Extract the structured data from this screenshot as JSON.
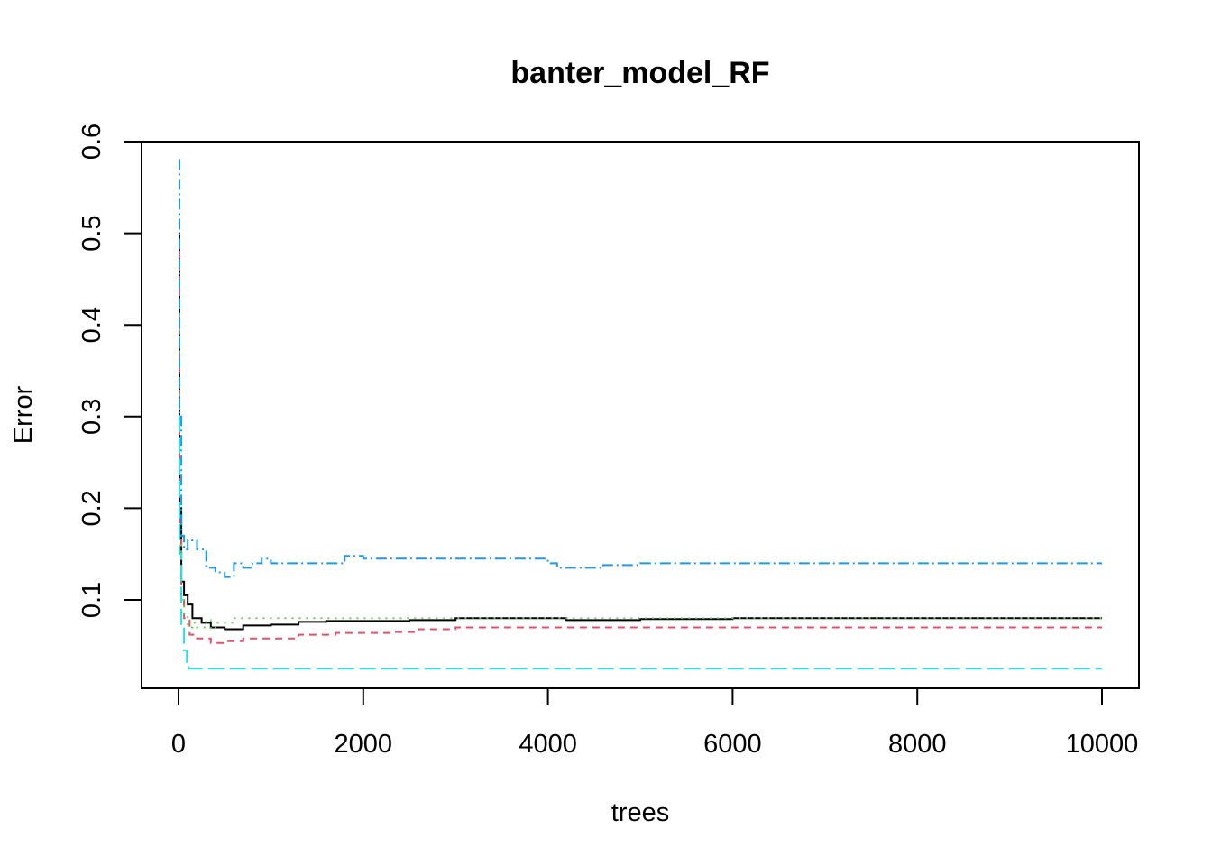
{
  "chart_data": {
    "type": "line",
    "title": "banter_model_RF",
    "xlabel": "trees",
    "ylabel": "Error",
    "xlim": [
      0,
      10000
    ],
    "ylim": [
      0.02,
      0.6
    ],
    "x_ticks": [
      0,
      2000,
      4000,
      6000,
      8000,
      10000
    ],
    "x_tick_labels": [
      "0",
      "2000",
      "4000",
      "6000",
      "8000",
      "10000"
    ],
    "y_ticks": [
      0.1,
      0.2,
      0.3,
      0.4,
      0.5,
      0.6
    ],
    "y_tick_labels": [
      "0.1",
      "0.2",
      "0.3",
      "0.4",
      "0.5",
      "0.6"
    ],
    "grid": false,
    "legend": "none",
    "series": [
      {
        "color": "#000000",
        "dash": "solid",
        "points": [
          [
            1,
            0.5
          ],
          [
            10,
            0.2
          ],
          [
            30,
            0.12
          ],
          [
            60,
            0.105
          ],
          [
            100,
            0.095
          ],
          [
            150,
            0.08
          ],
          [
            250,
            0.075
          ],
          [
            350,
            0.07
          ],
          [
            500,
            0.068
          ],
          [
            700,
            0.072
          ],
          [
            1000,
            0.073
          ],
          [
            1300,
            0.076
          ],
          [
            1600,
            0.077
          ],
          [
            2000,
            0.077
          ],
          [
            2500,
            0.078
          ],
          [
            3000,
            0.08
          ],
          [
            3500,
            0.08
          ],
          [
            4000,
            0.08
          ],
          [
            4200,
            0.078
          ],
          [
            4600,
            0.078
          ],
          [
            5000,
            0.079
          ],
          [
            6000,
            0.08
          ],
          [
            8000,
            0.08
          ],
          [
            10000,
            0.08
          ]
        ]
      },
      {
        "color": "#DF536B",
        "dash": "8,6",
        "points": [
          [
            1,
            0.48
          ],
          [
            10,
            0.17
          ],
          [
            30,
            0.1
          ],
          [
            60,
            0.08
          ],
          [
            120,
            0.062
          ],
          [
            200,
            0.058
          ],
          [
            350,
            0.053
          ],
          [
            500,
            0.055
          ],
          [
            700,
            0.058
          ],
          [
            1000,
            0.058
          ],
          [
            1300,
            0.062
          ],
          [
            1700,
            0.064
          ],
          [
            2000,
            0.064
          ],
          [
            2300,
            0.065
          ],
          [
            2600,
            0.068
          ],
          [
            3000,
            0.07
          ],
          [
            3500,
            0.07
          ],
          [
            4000,
            0.07
          ],
          [
            6000,
            0.07
          ],
          [
            10000,
            0.07
          ]
        ]
      },
      {
        "color": "#61D04F",
        "dash": "2,6",
        "points": [
          [
            1,
            0.45
          ],
          [
            10,
            0.16
          ],
          [
            30,
            0.1
          ],
          [
            60,
            0.085
          ],
          [
            100,
            0.07
          ],
          [
            150,
            0.075
          ],
          [
            200,
            0.07
          ],
          [
            300,
            0.078
          ],
          [
            350,
            0.068
          ],
          [
            400,
            0.075
          ],
          [
            600,
            0.08
          ],
          [
            1000,
            0.08
          ],
          [
            2000,
            0.08
          ],
          [
            4000,
            0.08
          ],
          [
            6000,
            0.08
          ],
          [
            10000,
            0.08
          ]
        ]
      },
      {
        "color": "#2297E6",
        "dash": "12,4,2,4",
        "points": [
          [
            1,
            0.58
          ],
          [
            10,
            0.3
          ],
          [
            30,
            0.17
          ],
          [
            60,
            0.155
          ],
          [
            100,
            0.165
          ],
          [
            200,
            0.155
          ],
          [
            300,
            0.135
          ],
          [
            400,
            0.13
          ],
          [
            500,
            0.125
          ],
          [
            600,
            0.14
          ],
          [
            700,
            0.135
          ],
          [
            800,
            0.14
          ],
          [
            900,
            0.145
          ],
          [
            1000,
            0.14
          ],
          [
            1400,
            0.14
          ],
          [
            1800,
            0.148
          ],
          [
            2000,
            0.145
          ],
          [
            3000,
            0.145
          ],
          [
            3900,
            0.145
          ],
          [
            4000,
            0.14
          ],
          [
            4100,
            0.135
          ],
          [
            4600,
            0.138
          ],
          [
            5000,
            0.14
          ],
          [
            6000,
            0.14
          ],
          [
            10000,
            0.14
          ]
        ]
      },
      {
        "color": "#28E2E5",
        "dash": "18,6",
        "points": [
          [
            1,
            0.3
          ],
          [
            10,
            0.15
          ],
          [
            30,
            0.07
          ],
          [
            60,
            0.045
          ],
          [
            90,
            0.03
          ],
          [
            110,
            0.025
          ],
          [
            200,
            0.025
          ],
          [
            1000,
            0.025
          ],
          [
            10000,
            0.025
          ]
        ]
      }
    ]
  }
}
